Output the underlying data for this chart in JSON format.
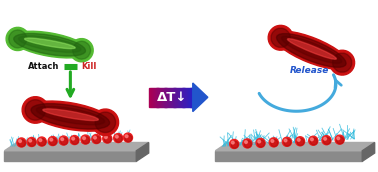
{
  "bg_color": "#ffffff",
  "gray_platform_color": "#8a8a8a",
  "gray_platform_side": "#666666",
  "gray_platform_top": "#aaaaaa",
  "red_bacteria_color": "#cc1111",
  "red_bacteria_mid": "#990000",
  "red_bacteria_dark": "#550000",
  "red_bacteria_highlight": "#ff4444",
  "green_bacteria_color": "#55bb33",
  "green_bacteria_mid": "#339922",
  "green_bacteria_dark": "#226611",
  "green_bacteria_highlight": "#99ee66",
  "cyan_brush_color": "#33bbdd",
  "red_sphere_color": "#ee2222",
  "red_sphere_highlight": "#ff8888",
  "arrow_green_color": "#22aa22",
  "arrow_green_dark": "#116611",
  "arrow_cyan_color": "#44aadd",
  "text_attach": "Attach",
  "text_kill": "Kill",
  "text_release": "Release",
  "text_delta": "ΔT↓",
  "label_color_attach": "#111111",
  "label_color_kill": "#cc2222",
  "label_color_release": "#2255cc",
  "figsize": [
    3.78,
    1.72
  ],
  "dpi": 100
}
